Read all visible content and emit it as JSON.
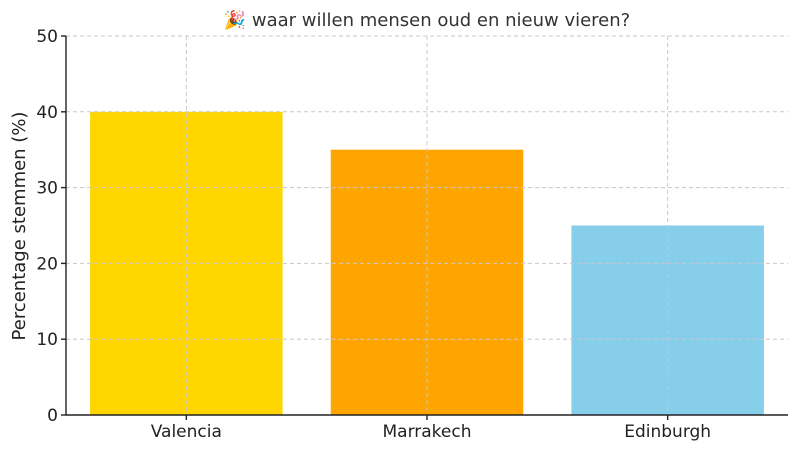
{
  "chart_data": {
    "type": "bar",
    "title": "🎉 waar willen mensen oud en nieuw vieren?",
    "title_icon": "party-popper-icon",
    "xlabel": "",
    "ylabel": "Percentage stemmen (%)",
    "ylim": [
      0,
      50
    ],
    "yticks": [
      0,
      10,
      20,
      30,
      40,
      50
    ],
    "grid": true,
    "categories": [
      "Valencia",
      "Marrakech",
      "Edinburgh"
    ],
    "values": [
      40,
      35,
      25
    ],
    "colors": [
      "#FFD500",
      "#FFA500",
      "#87CEEB"
    ]
  }
}
